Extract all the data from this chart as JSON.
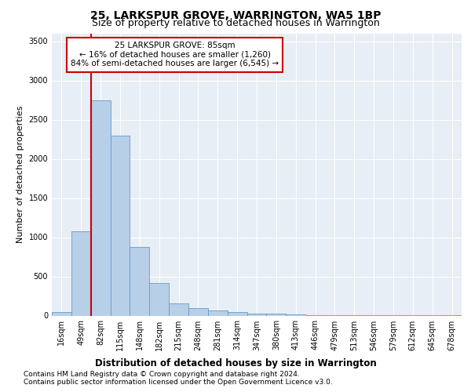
{
  "title": "25, LARKSPUR GROVE, WARRINGTON, WA5 1BP",
  "subtitle": "Size of property relative to detached houses in Warrington",
  "xlabel": "Distribution of detached houses by size in Warrington",
  "ylabel": "Number of detached properties",
  "footnote1": "Contains HM Land Registry data © Crown copyright and database right 2024.",
  "footnote2": "Contains public sector information licensed under the Open Government Licence v3.0.",
  "annotation_line1": "25 LARKSPUR GROVE: 85sqm",
  "annotation_line2": "← 16% of detached houses are smaller (1,260)",
  "annotation_line3": "84% of semi-detached houses are larger (6,545) →",
  "bar_color": "#b8cfe8",
  "bar_edge_color": "#6699cc",
  "redline_color": "#cc0000",
  "background_color": "#e8eef5",
  "grid_color": "#ffffff",
  "categories": [
    "16sqm",
    "49sqm",
    "82sqm",
    "115sqm",
    "148sqm",
    "182sqm",
    "215sqm",
    "248sqm",
    "281sqm",
    "314sqm",
    "347sqm",
    "380sqm",
    "413sqm",
    "446sqm",
    "479sqm",
    "513sqm",
    "546sqm",
    "579sqm",
    "612sqm",
    "645sqm",
    "678sqm"
  ],
  "values": [
    50,
    1080,
    2750,
    2300,
    880,
    420,
    160,
    100,
    70,
    50,
    30,
    25,
    20,
    5,
    5,
    3,
    2,
    1,
    1,
    1,
    1
  ],
  "ylim": [
    0,
    3600
  ],
  "yticks": [
    0,
    500,
    1000,
    1500,
    2000,
    2500,
    3000,
    3500
  ],
  "redline_index": 2,
  "title_fontsize": 10,
  "subtitle_fontsize": 9,
  "axis_label_fontsize": 8.5,
  "ylabel_fontsize": 8,
  "tick_fontsize": 7,
  "annotation_fontsize": 7.5,
  "footnote_fontsize": 6.5
}
